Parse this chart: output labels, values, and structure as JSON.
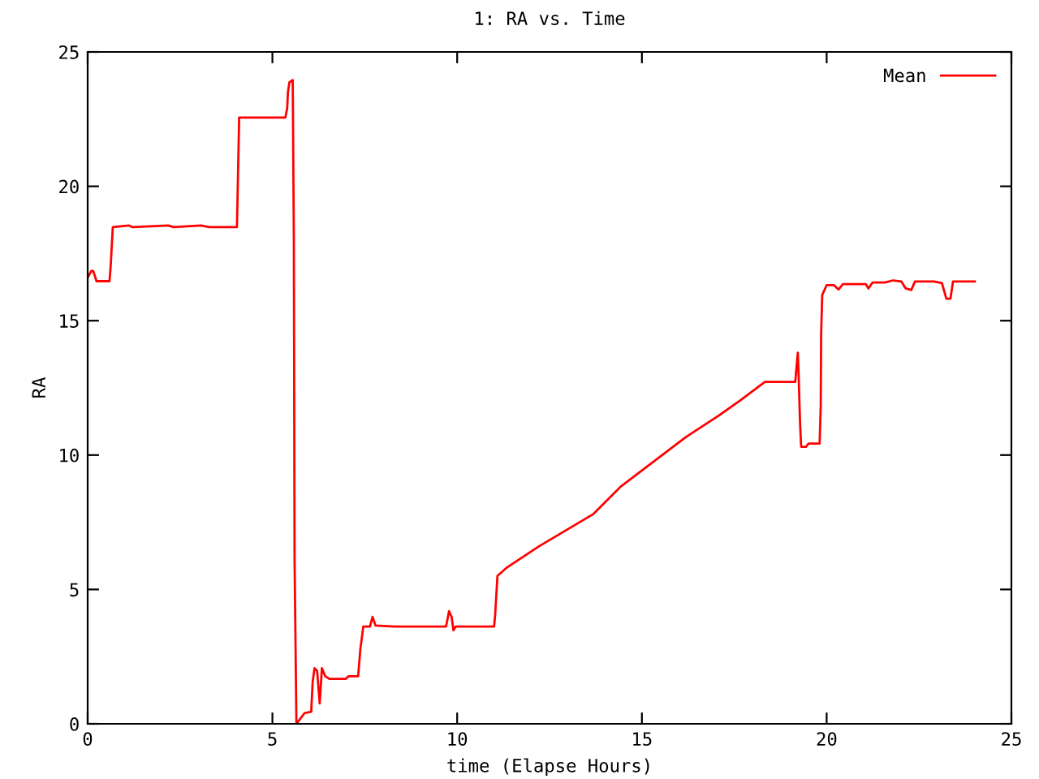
{
  "chart_data": {
    "type": "line",
    "title": "1: RA vs. Time",
    "xlabel": "time (Elapse Hours)",
    "ylabel": "RA",
    "xlim": [
      0,
      25
    ],
    "ylim": [
      0,
      25
    ],
    "xticks": [
      0,
      5,
      10,
      15,
      20,
      25
    ],
    "yticks": [
      0,
      5,
      10,
      15,
      20,
      25
    ],
    "grid": false,
    "legend": "top right",
    "marker": "none",
    "line_style": "solid",
    "series": [
      {
        "name": "Mean",
        "color": "#ff0000",
        "x": [
          0,
          0.1,
          0.15,
          0.24,
          0.59,
          0.62,
          0.68,
          1.12,
          1.22,
          2.18,
          2.33,
          3.07,
          3.29,
          4.04,
          4.07,
          4.1,
          5.35,
          5.4,
          5.42,
          5.46,
          5.55,
          5.58,
          5.6,
          5.65,
          5.87,
          6.05,
          6.09,
          6.14,
          6.21,
          6.28,
          6.34,
          6.43,
          6.54,
          6.98,
          7.06,
          7.32,
          7.38,
          7.46,
          7.64,
          7.71,
          7.79,
          8.3,
          9.7,
          9.78,
          9.85,
          9.9,
          9.96,
          11.0,
          11.03,
          11.09,
          11.33,
          12.21,
          13.69,
          14.42,
          16.19,
          17.08,
          17.67,
          18.33,
          19.15,
          19.17,
          19.22,
          19.24,
          19.28,
          19.31,
          19.44,
          19.51,
          19.81,
          19.84,
          19.85,
          19.88,
          20.0,
          20.2,
          20.32,
          20.44,
          21.06,
          21.13,
          21.24,
          21.58,
          21.8,
          22.02,
          22.14,
          22.29,
          22.39,
          22.9,
          23.12,
          23.24,
          23.35,
          23.42,
          24.01
        ],
        "values": [
          16.6,
          16.85,
          16.85,
          16.47,
          16.47,
          16.97,
          18.48,
          18.54,
          18.48,
          18.54,
          18.48,
          18.54,
          18.48,
          18.48,
          20.49,
          22.56,
          22.56,
          22.9,
          23.5,
          23.87,
          23.95,
          18.07,
          6.1,
          0,
          0.4,
          0.45,
          1.57,
          2.07,
          1.97,
          0.76,
          2.07,
          1.77,
          1.67,
          1.67,
          1.77,
          1.77,
          2.78,
          3.62,
          3.62,
          3.98,
          3.66,
          3.62,
          3.62,
          4.19,
          3.98,
          3.48,
          3.62,
          3.62,
          4.09,
          5.5,
          5.8,
          6.6,
          7.81,
          8.82,
          10.67,
          11.47,
          12.04,
          12.72,
          12.72,
          13.04,
          13.81,
          13.04,
          11.19,
          10.31,
          10.31,
          10.43,
          10.43,
          11.84,
          14.45,
          15.96,
          16.32,
          16.32,
          16.16,
          16.36,
          16.36,
          16.2,
          16.42,
          16.42,
          16.5,
          16.46,
          16.2,
          16.14,
          16.46,
          16.46,
          16.4,
          15.82,
          15.82,
          16.46,
          16.46
        ]
      }
    ]
  }
}
